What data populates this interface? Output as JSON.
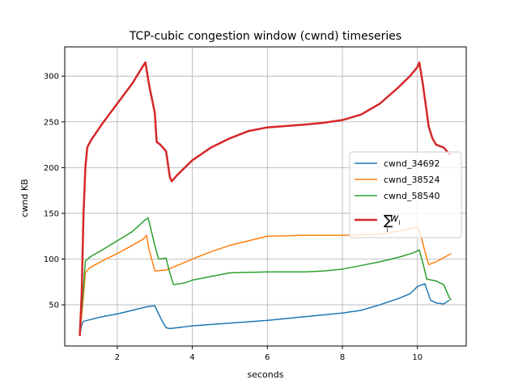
{
  "chart_data": {
    "type": "line",
    "title": "TCP-cubic congestion window (cwnd) timeseries",
    "xlabel": "seconds",
    "ylabel": "cwnd KB",
    "xlim": [
      0.6,
      11.3
    ],
    "ylim": [
      5,
      332
    ],
    "xticks": [
      2,
      4,
      6,
      8,
      10
    ],
    "yticks": [
      50,
      100,
      150,
      200,
      250,
      300
    ],
    "grid": true,
    "legend_position": "right",
    "series": [
      {
        "name": "cwnd_34692",
        "color": "#1f77b4",
        "linewidth": 1.5,
        "legend_symbol": "line",
        "points": [
          [
            1.0,
            16
          ],
          [
            1.05,
            28
          ],
          [
            1.1,
            32
          ],
          [
            1.3,
            34
          ],
          [
            1.6,
            37
          ],
          [
            2.0,
            40
          ],
          [
            2.4,
            44
          ],
          [
            2.8,
            48
          ],
          [
            3.0,
            49
          ],
          [
            3.1,
            40
          ],
          [
            3.2,
            32
          ],
          [
            3.3,
            25
          ],
          [
            3.4,
            24
          ],
          [
            3.6,
            25
          ],
          [
            4.0,
            27
          ],
          [
            5.0,
            30
          ],
          [
            6.0,
            33
          ],
          [
            7.0,
            37
          ],
          [
            8.0,
            41
          ],
          [
            8.5,
            44
          ],
          [
            9.0,
            50
          ],
          [
            9.5,
            57
          ],
          [
            9.8,
            62
          ],
          [
            10.0,
            70
          ],
          [
            10.2,
            73
          ],
          [
            10.35,
            55
          ],
          [
            10.5,
            52
          ],
          [
            10.7,
            51
          ],
          [
            10.85,
            55
          ]
        ]
      },
      {
        "name": "cwnd_38524",
        "color": "#ff7f0e",
        "linewidth": 1.5,
        "legend_symbol": "line",
        "points": [
          [
            1.0,
            16
          ],
          [
            1.1,
            60
          ],
          [
            1.15,
            85
          ],
          [
            1.25,
            90
          ],
          [
            1.6,
            98
          ],
          [
            2.0,
            106
          ],
          [
            2.4,
            115
          ],
          [
            2.7,
            122
          ],
          [
            2.78,
            126
          ],
          [
            2.85,
            110
          ],
          [
            2.95,
            95
          ],
          [
            3.0,
            87
          ],
          [
            3.3,
            88
          ],
          [
            3.6,
            93
          ],
          [
            4.0,
            100
          ],
          [
            4.5,
            108
          ],
          [
            5.0,
            115
          ],
          [
            5.5,
            120
          ],
          [
            6.0,
            125
          ],
          [
            7.0,
            126
          ],
          [
            8.0,
            126
          ],
          [
            9.0,
            127
          ],
          [
            9.7,
            132
          ],
          [
            10.0,
            135
          ],
          [
            10.1,
            125
          ],
          [
            10.2,
            108
          ],
          [
            10.3,
            94
          ],
          [
            10.5,
            97
          ],
          [
            10.9,
            106
          ]
        ]
      },
      {
        "name": "cwnd_58540",
        "color": "#2ca02c",
        "linewidth": 1.5,
        "legend_symbol": "line",
        "points": [
          [
            1.0,
            16
          ],
          [
            1.1,
            70
          ],
          [
            1.15,
            98
          ],
          [
            1.3,
            103
          ],
          [
            1.6,
            110
          ],
          [
            2.0,
            120
          ],
          [
            2.4,
            130
          ],
          [
            2.75,
            143
          ],
          [
            2.82,
            145
          ],
          [
            2.9,
            132
          ],
          [
            3.0,
            115
          ],
          [
            3.1,
            100
          ],
          [
            3.3,
            101
          ],
          [
            3.4,
            85
          ],
          [
            3.5,
            72
          ],
          [
            3.8,
            74
          ],
          [
            4.0,
            77
          ],
          [
            4.5,
            81
          ],
          [
            5.0,
            85
          ],
          [
            6.0,
            86
          ],
          [
            7.0,
            86
          ],
          [
            7.5,
            87
          ],
          [
            8.0,
            89
          ],
          [
            8.5,
            93
          ],
          [
            9.0,
            97
          ],
          [
            9.5,
            102
          ],
          [
            9.9,
            107
          ],
          [
            10.05,
            110
          ],
          [
            10.15,
            95
          ],
          [
            10.25,
            78
          ],
          [
            10.5,
            76
          ],
          [
            10.7,
            72
          ],
          [
            10.85,
            58
          ],
          [
            10.9,
            55
          ]
        ]
      },
      {
        "name": "∑_i w_i",
        "color": "#d62728",
        "linewidth": 2.5,
        "legend_symbol": "line",
        "points": [
          [
            1.0,
            16
          ],
          [
            1.05,
            60
          ],
          [
            1.1,
            150
          ],
          [
            1.15,
            200
          ],
          [
            1.2,
            222
          ],
          [
            1.3,
            230
          ],
          [
            1.6,
            248
          ],
          [
            2.0,
            270
          ],
          [
            2.4,
            292
          ],
          [
            2.7,
            312
          ],
          [
            2.75,
            315
          ],
          [
            2.85,
            290
          ],
          [
            3.0,
            260
          ],
          [
            3.05,
            228
          ],
          [
            3.15,
            225
          ],
          [
            3.3,
            218
          ],
          [
            3.4,
            190
          ],
          [
            3.45,
            185
          ],
          [
            3.6,
            192
          ],
          [
            4.0,
            208
          ],
          [
            4.5,
            222
          ],
          [
            5.0,
            232
          ],
          [
            5.5,
            240
          ],
          [
            6.0,
            244
          ],
          [
            7.0,
            247
          ],
          [
            7.5,
            249
          ],
          [
            8.0,
            252
          ],
          [
            8.5,
            258
          ],
          [
            9.0,
            270
          ],
          [
            9.5,
            288
          ],
          [
            9.8,
            300
          ],
          [
            10.0,
            310
          ],
          [
            10.05,
            315
          ],
          [
            10.15,
            290
          ],
          [
            10.3,
            245
          ],
          [
            10.4,
            232
          ],
          [
            10.5,
            225
          ],
          [
            10.7,
            222
          ],
          [
            10.85,
            215
          ],
          [
            10.9,
            214
          ]
        ]
      }
    ],
    "legend_entries": [
      "cwnd_34692",
      "cwnd_38524",
      "cwnd_58540",
      "∑_i w_i"
    ]
  }
}
